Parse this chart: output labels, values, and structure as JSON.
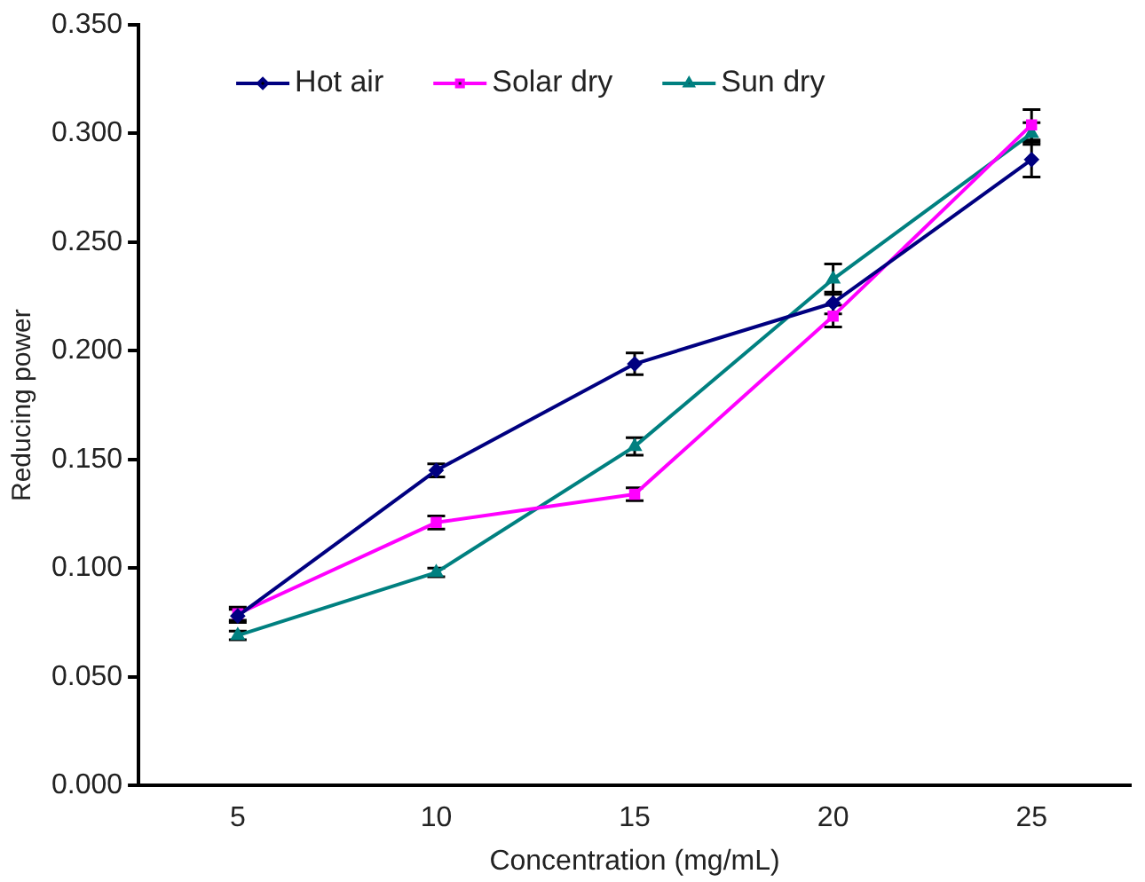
{
  "chart_data": {
    "type": "line",
    "xlabel": "Concentration (mg/mL)",
    "ylabel": "Reducing power",
    "categories": [
      "5",
      "10",
      "15",
      "20",
      "25"
    ],
    "ylim": [
      0,
      0.35
    ],
    "yticks": [
      {
        "value": 0,
        "label": "0.000"
      },
      {
        "value": 0.05,
        "label": "0.050"
      },
      {
        "value": 0.1,
        "label": "0.100"
      },
      {
        "value": 0.15,
        "label": "0.150"
      },
      {
        "value": 0.2,
        "label": "0.200"
      },
      {
        "value": 0.25,
        "label": "0.250"
      },
      {
        "value": 0.3,
        "label": "0.300"
      },
      {
        "value": 0.35,
        "label": "0.350"
      }
    ],
    "grid": false,
    "legend": "top left",
    "line_style": "solid",
    "series": [
      {
        "name": "Hot air",
        "color": "#000080",
        "marker": "diamond",
        "values": [
          0.078,
          0.145,
          0.194,
          0.222,
          0.288
        ],
        "errors": [
          0.003,
          0.003,
          0.005,
          0.005,
          0.008
        ]
      },
      {
        "name": "Solar dry",
        "color": "#ff00ff",
        "marker": "square",
        "values": [
          0.079,
          0.121,
          0.134,
          0.216,
          0.304
        ],
        "errors": [
          0.003,
          0.003,
          0.003,
          0.005,
          0.007
        ]
      },
      {
        "name": "Sun dry",
        "color": "#008080",
        "marker": "triangle",
        "values": [
          0.069,
          0.098,
          0.156,
          0.233,
          0.3
        ],
        "errors": [
          0.002,
          0.002,
          0.004,
          0.007,
          0.005
        ]
      }
    ]
  }
}
